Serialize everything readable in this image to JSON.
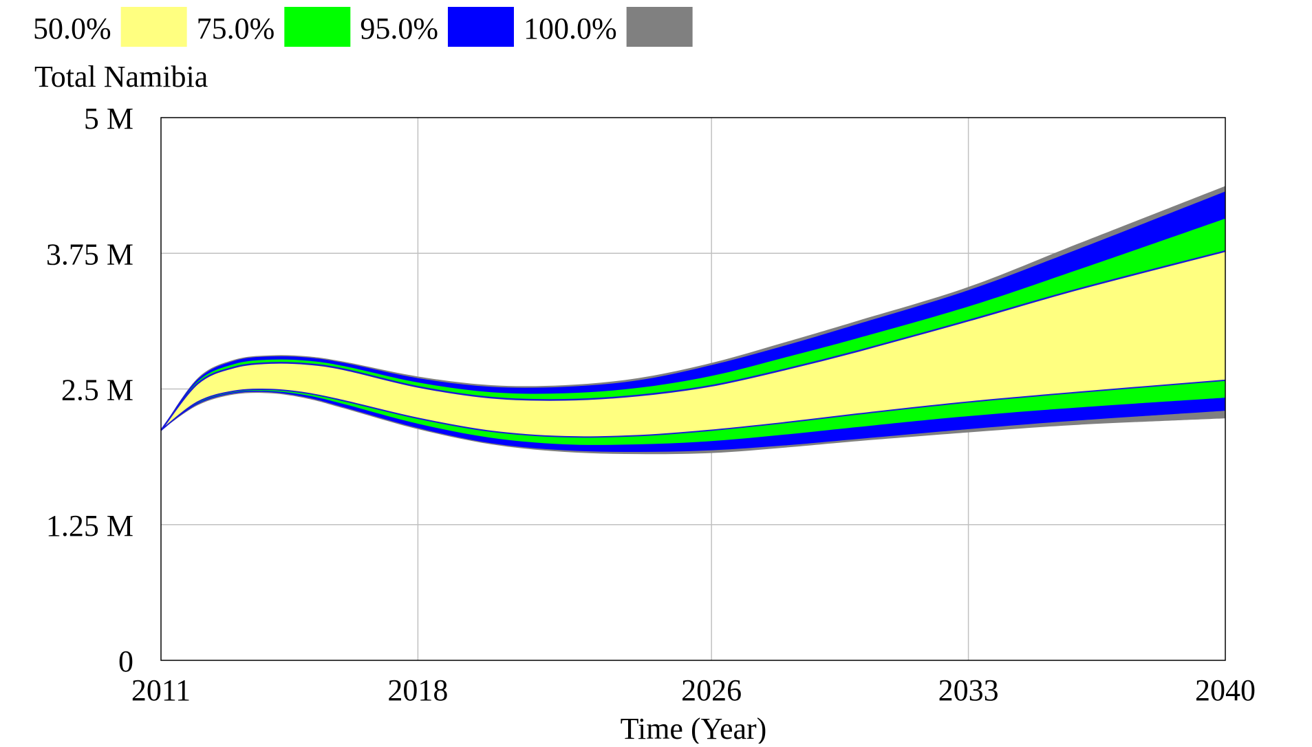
{
  "chart_data": {
    "type": "area",
    "title": "Total Namibia",
    "xlabel": "Time (Year)",
    "ylabel": "",
    "xlim": [
      2011,
      2040
    ],
    "ylim": [
      0,
      5000000
    ],
    "x_ticks": [
      2011,
      2018,
      2026,
      2033,
      2040
    ],
    "x_tick_labels": [
      "2011",
      "2018",
      "2026",
      "2033",
      "2040"
    ],
    "y_ticks": [
      0,
      1250000,
      2500000,
      3750000,
      5000000
    ],
    "y_tick_labels": [
      "0",
      "1.25 M",
      "2.5 M",
      "3.75 M",
      "5 M"
    ],
    "grid": true,
    "legend_position": "top-left",
    "colors": {
      "band_50": "#ffff80",
      "band_75": "#00ff00",
      "band_95": "#0000ff",
      "band_100": "#808080",
      "median_line": "#1a1ad6",
      "grid": "#c0c0c0",
      "axis": "#000000"
    },
    "legend": [
      {
        "label": "50.0%",
        "color": "#ffff80"
      },
      {
        "label": "75.0%",
        "color": "#00ff00"
      },
      {
        "label": "95.0%",
        "color": "#0000ff"
      },
      {
        "label": "100.0%",
        "color": "#808080"
      }
    ],
    "x": [
      2011,
      2012,
      2013,
      2014,
      2015,
      2016,
      2018,
      2020,
      2022,
      2024,
      2026,
      2028,
      2030,
      2033,
      2036,
      2040
    ],
    "bands": {
      "lower_100": [
        2120000,
        2350000,
        2450000,
        2460000,
        2410000,
        2320000,
        2130000,
        1990000,
        1920000,
        1900000,
        1910000,
        1960000,
        2020000,
        2100000,
        2170000,
        2230000
      ],
      "lower_95": [
        2120000,
        2360000,
        2460000,
        2470000,
        2420000,
        2330000,
        2140000,
        2000000,
        1935000,
        1920000,
        1935000,
        1980000,
        2040000,
        2130000,
        2210000,
        2300000
      ],
      "lower_75": [
        2120000,
        2370000,
        2470000,
        2480000,
        2440000,
        2360000,
        2180000,
        2050000,
        1990000,
        1990000,
        2020000,
        2080000,
        2150000,
        2250000,
        2330000,
        2420000
      ],
      "lower_50": [
        2120000,
        2380000,
        2480000,
        2495000,
        2460000,
        2390000,
        2230000,
        2110000,
        2060000,
        2070000,
        2120000,
        2190000,
        2270000,
        2380000,
        2470000,
        2580000
      ],
      "upper_50": [
        2120000,
        2550000,
        2700000,
        2740000,
        2730000,
        2680000,
        2520000,
        2420000,
        2400000,
        2440000,
        2530000,
        2680000,
        2850000,
        3130000,
        3420000,
        3770000
      ],
      "upper_75": [
        2120000,
        2570000,
        2730000,
        2770000,
        2760000,
        2710000,
        2560000,
        2470000,
        2460000,
        2510000,
        2620000,
        2790000,
        2970000,
        3260000,
        3600000,
        4070000
      ],
      "upper_95": [
        2120000,
        2590000,
        2760000,
        2800000,
        2790000,
        2740000,
        2600000,
        2520000,
        2520000,
        2580000,
        2720000,
        2900000,
        3100000,
        3410000,
        3790000,
        4320000
      ],
      "upper_100": [
        2120000,
        2600000,
        2770000,
        2810000,
        2800000,
        2750000,
        2615000,
        2535000,
        2535000,
        2600000,
        2740000,
        2930000,
        3130000,
        3440000,
        3840000,
        4370000
      ]
    }
  }
}
